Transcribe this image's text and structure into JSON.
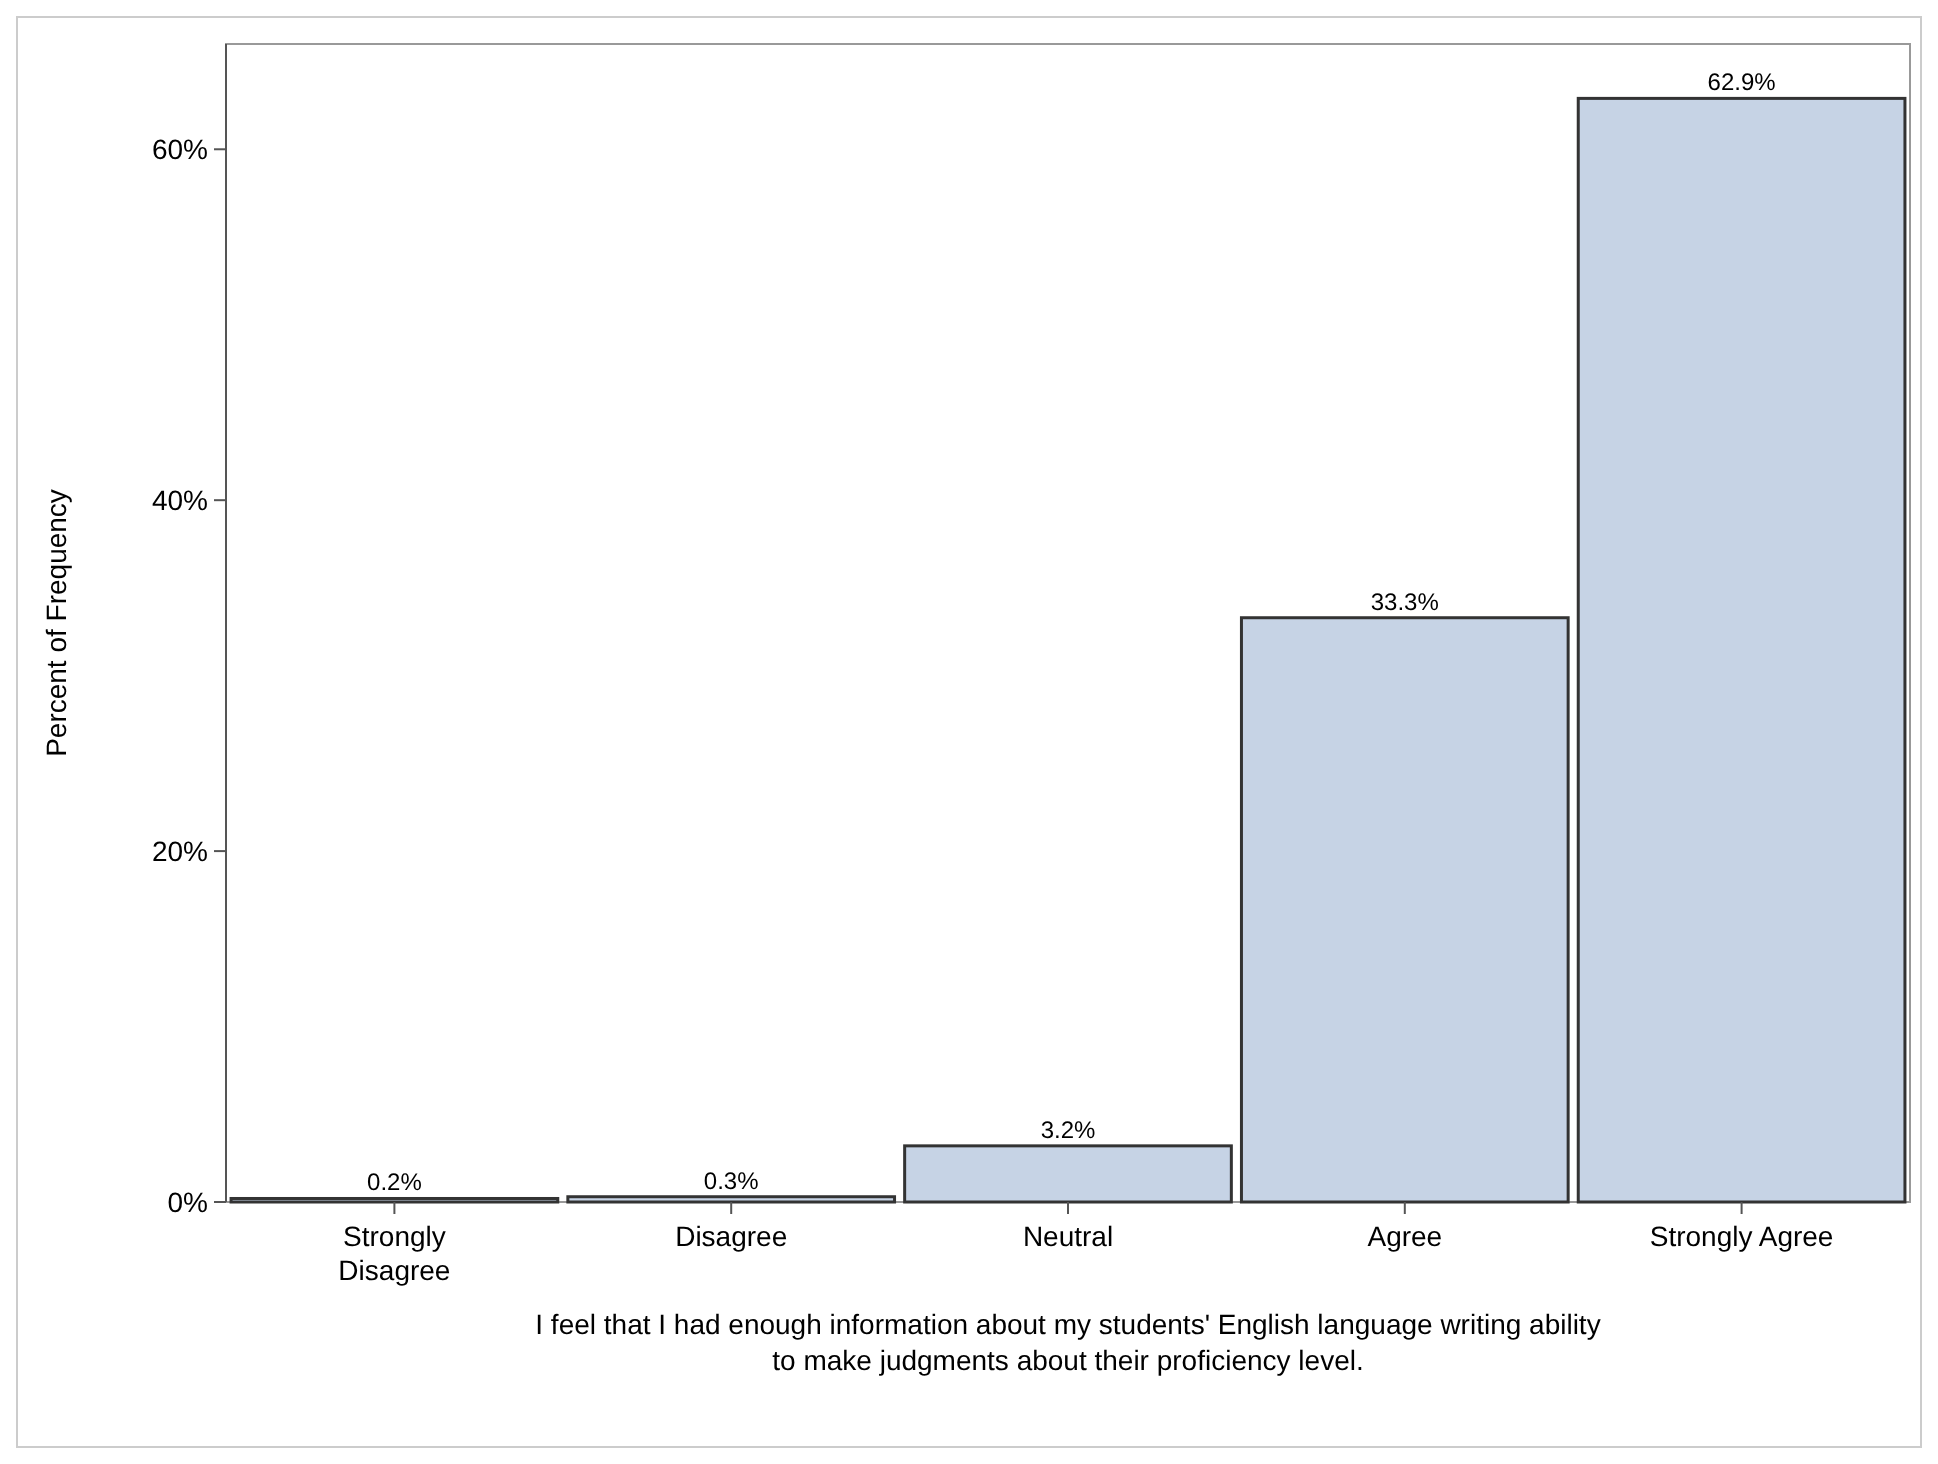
{
  "chart_data": {
    "type": "bar",
    "categories": [
      "Strongly Disagree",
      "Disagree",
      "Neutral",
      "Agree",
      "Strongly Agree"
    ],
    "values": [
      0.2,
      0.3,
      3.2,
      33.3,
      62.9
    ],
    "value_labels": [
      "0.2%",
      "0.3%",
      "3.2%",
      "33.3%",
      "62.9%"
    ],
    "color": "#c6d3e5",
    "ylim": [
      0,
      66
    ],
    "yticks": [
      {
        "value": 0,
        "label": "0%"
      },
      {
        "value": 20,
        "label": "20%"
      },
      {
        "value": 40,
        "label": "40%"
      },
      {
        "value": 60,
        "label": "60%"
      }
    ],
    "ylabel": "Percent of Frequency",
    "xlabel": "I feel that I had enough information about my students' English language writing ability to make judgments about their proficiency level."
  }
}
